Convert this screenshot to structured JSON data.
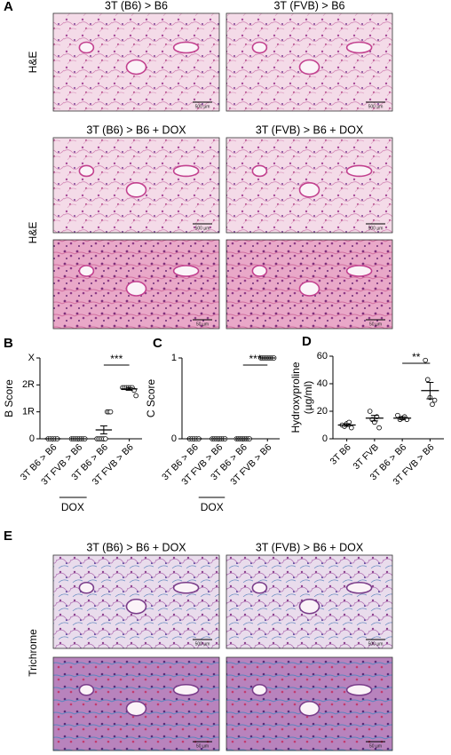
{
  "panel_a": {
    "label": "A",
    "row_labels": [
      "H&E",
      "H&E"
    ],
    "images": [
      {
        "title": "3T (B6) > B6",
        "scale": "500 µm"
      },
      {
        "title": "3T (FVB) > B6",
        "scale": "500 µm"
      },
      {
        "title": "3T (B6) > B6  + DOX",
        "scale": "500 µm"
      },
      {
        "title": "3T (FVB) > B6 + DOX",
        "scale": "500 µm"
      },
      {
        "scale": "50 µm"
      },
      {
        "scale": "50 µm"
      }
    ]
  },
  "chart_data": [
    {
      "type": "strip",
      "label": "B",
      "ylabel": "B Score",
      "categories": [
        "3T B6 > B6",
        "3T FVB > B6",
        "3T B6 > B6",
        "3T FVB > B6"
      ],
      "points": [
        [
          0,
          0,
          0,
          0,
          0
        ],
        [
          0,
          0,
          0,
          0,
          0,
          0,
          0,
          0
        ],
        [
          0,
          0,
          0,
          0,
          0,
          0,
          1,
          1,
          1
        ],
        [
          1.9,
          1.9,
          1.9,
          1.9,
          1.9,
          1.9,
          1.8,
          1.6
        ]
      ],
      "means": [
        0,
        0,
        0.33,
        1.85
      ],
      "errors": [
        0,
        0,
        0.15,
        0.05
      ],
      "ylim": [
        0,
        3
      ],
      "yticks": [
        0,
        {
          "value": 1,
          "label": "1R"
        },
        {
          "value": 2,
          "label": "2R"
        },
        {
          "value": 3,
          "label": "X"
        }
      ],
      "significance": "***",
      "bracket_label": "DOX"
    },
    {
      "type": "strip",
      "label": "C",
      "ylabel": "C Score",
      "categories": [
        "3T B6 > B6",
        "3T FVB > B6",
        "3T B6 > B6",
        "3T FVB > B6"
      ],
      "points": [
        [
          0,
          0,
          0,
          0,
          0
        ],
        [
          0,
          0,
          0,
          0,
          0,
          0,
          0,
          0
        ],
        [
          0,
          0,
          0,
          0,
          0,
          0,
          0,
          0,
          0
        ],
        [
          1,
          1,
          1,
          1,
          1,
          1,
          1,
          1,
          1
        ]
      ],
      "means": [
        0,
        0,
        0,
        1
      ],
      "errors": [
        0,
        0,
        0,
        0
      ],
      "ylim": [
        0,
        1
      ],
      "yticks": [
        0,
        1
      ],
      "significance": "***",
      "bracket_label": "DOX"
    },
    {
      "type": "strip",
      "label": "D",
      "ylabel": "Hydroxyproline\n(µg/ml)",
      "categories": [
        "3T B6",
        "3T FVB",
        "3T B6 > B6",
        "3T FVB > B6"
      ],
      "points": [
        [
          10,
          9,
          11,
          12,
          8
        ],
        [
          20,
          14,
          12,
          16,
          8
        ],
        [
          17,
          14,
          15,
          16,
          14
        ],
        [
          57,
          43,
          30,
          25,
          28
        ]
      ],
      "means": [
        10,
        15,
        15,
        35
      ],
      "errors": [
        1,
        2,
        1,
        6
      ],
      "ylim": [
        0,
        60
      ],
      "yticks": [
        0,
        20,
        40,
        60
      ],
      "significance": "**"
    }
  ],
  "panel_e": {
    "label": "E",
    "row_label": "Trichrome",
    "images": [
      {
        "title": "3T (B6) > B6 + DOX",
        "scale": "500 µm"
      },
      {
        "title": "3T (FVB) > B6 + DOX",
        "scale": "500 µm"
      },
      {
        "scale": "50 µm"
      },
      {
        "scale": "50 µm"
      }
    ]
  }
}
